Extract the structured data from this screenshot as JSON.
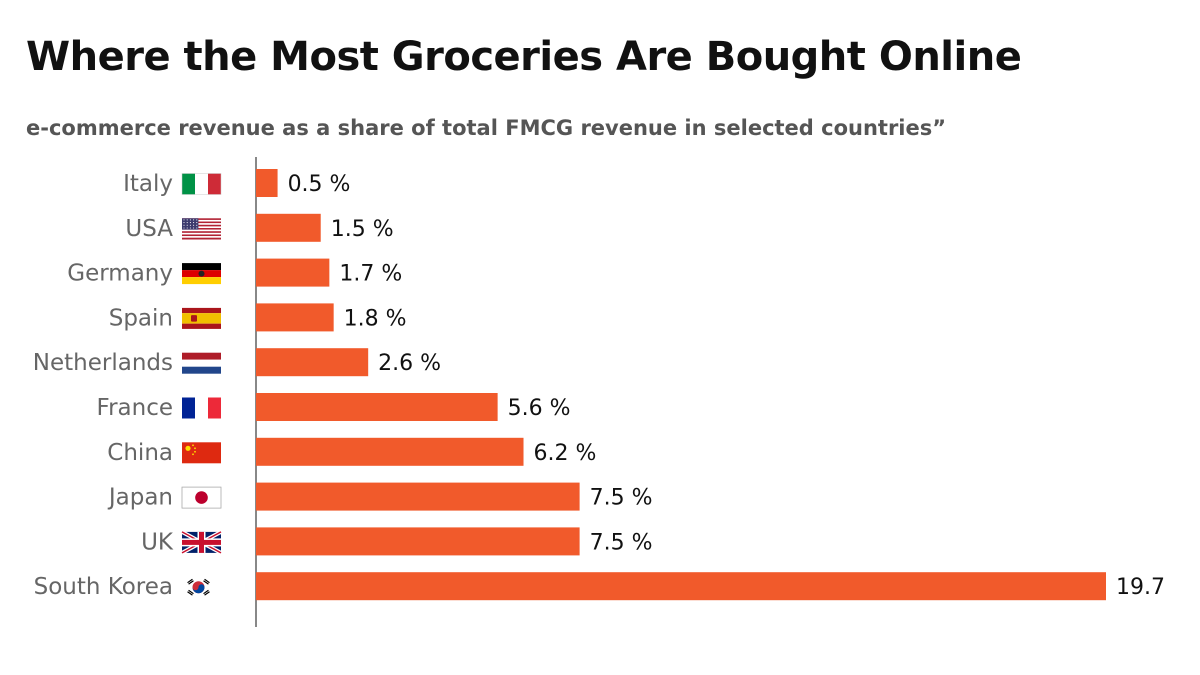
{
  "title": "Where the Most Groceries Are Bought Online",
  "subtitle": "e-commerce revenue as a share of total FMCG revenue in selected countries”",
  "colors": {
    "bar": "#f15a2b",
    "axis": "#888888",
    "category_text": "#666666",
    "value_text": "#111111"
  },
  "chart_data": {
    "type": "bar",
    "orientation": "horizontal",
    "title": "Where the Most Groceries Are Bought Online",
    "subtitle": "e-commerce revenue as a share of total FMCG revenue in selected countries”",
    "categories": [
      "Italy",
      "USA",
      "Germany",
      "Spain",
      "Netherlands",
      "France",
      "China",
      "Japan",
      "UK",
      "South Korea"
    ],
    "values": [
      0.5,
      1.5,
      1.7,
      1.8,
      2.6,
      5.6,
      6.2,
      7.5,
      7.5,
      19.7
    ],
    "value_labels": [
      "0.5 %",
      "1.5 %",
      "1.7 %",
      "1.8 %",
      "2.6 %",
      "5.6 %",
      "6.2 %",
      "7.5 %",
      "7.5 %",
      "19.7"
    ],
    "flag_icons": [
      "italy-flag-icon",
      "usa-flag-icon",
      "germany-flag-icon",
      "spain-flag-icon",
      "netherlands-flag-icon",
      "france-flag-icon",
      "china-flag-icon",
      "japan-flag-icon",
      "uk-flag-icon",
      "south-korea-flag-icon"
    ],
    "xlabel": "",
    "ylabel": "",
    "xlim": [
      0,
      19.7
    ],
    "grid": false,
    "legend": "none"
  }
}
